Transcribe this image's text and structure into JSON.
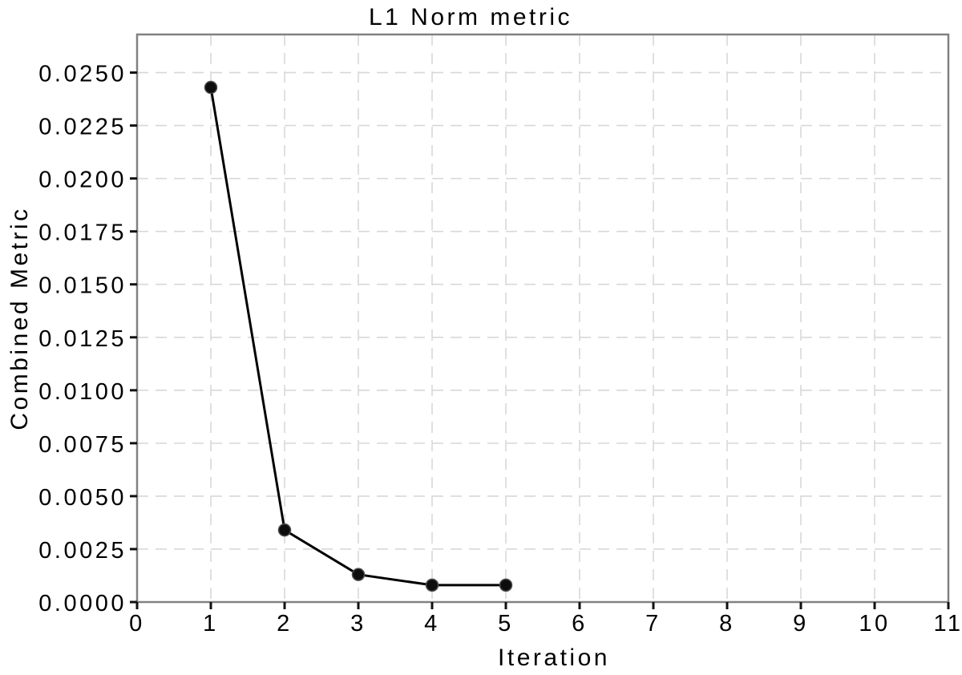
{
  "chart_data": {
    "type": "line",
    "title": "L1 Norm metric",
    "xlabel": "Iteration",
    "ylabel": "Combined Metric",
    "x": [
      1,
      2,
      3,
      4,
      5
    ],
    "y": [
      0.0243,
      0.0034,
      0.0013,
      0.0008,
      0.0008
    ],
    "xlim": [
      0,
      11
    ],
    "ylim": [
      0,
      0.0268
    ],
    "xtick_values": [
      0,
      1,
      2,
      3,
      4,
      5,
      6,
      7,
      8,
      9,
      10,
      11
    ],
    "xtick_labels": [
      "0",
      "1",
      "2",
      "3",
      "4",
      "5",
      "6",
      "7",
      "8",
      "9",
      "10",
      "11"
    ],
    "ytick_values": [
      0.0,
      0.0025,
      0.005,
      0.0075,
      0.01,
      0.0125,
      0.015,
      0.0175,
      0.02,
      0.0225,
      0.025
    ],
    "ytick_labels": [
      "0.0000",
      "0.0025",
      "0.0050",
      "0.0075",
      "0.0100",
      "0.0125",
      "0.0150",
      "0.0175",
      "0.0200",
      "0.0225",
      "0.0250"
    ],
    "grid": true,
    "legend": false,
    "colors": {
      "line": "#000000",
      "marker_fill": "#0d0d0d",
      "marker_edge": "#4d4d4d",
      "grid": "#d8d8d8",
      "frame": "#818181",
      "tick": "#111111",
      "text": "#000000",
      "background": "#ffffff"
    }
  }
}
